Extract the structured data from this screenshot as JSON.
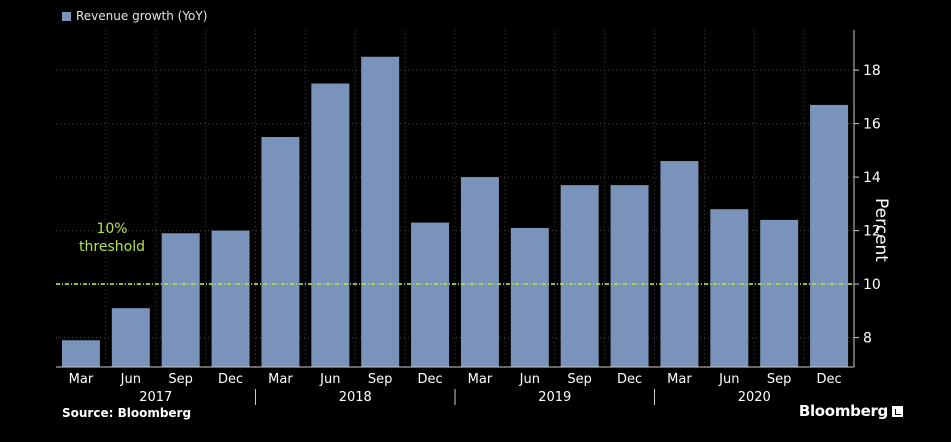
{
  "legend": {
    "label": "Revenue growth (YoY)",
    "color": "#7a93ba"
  },
  "threshold": {
    "label_line1": "10%",
    "label_line2": "threshold",
    "value": 10,
    "color": "#b3e34a"
  },
  "footer": {
    "source": "Source: Bloomberg",
    "brand": "Bloomberg"
  },
  "chart_data": {
    "type": "bar",
    "categories": [
      "Mar",
      "Jun",
      "Sep",
      "Dec",
      "Mar",
      "Jun",
      "Sep",
      "Dec",
      "Mar",
      "Jun",
      "Sep",
      "Dec",
      "Mar",
      "Jun",
      "Sep",
      "Dec"
    ],
    "years": [
      {
        "label": "2017",
        "start": 0,
        "end": 3
      },
      {
        "label": "2018",
        "start": 4,
        "end": 7
      },
      {
        "label": "2019",
        "start": 8,
        "end": 11
      },
      {
        "label": "2020",
        "start": 12,
        "end": 15
      }
    ],
    "series": [
      {
        "name": "Revenue growth (YoY)",
        "values": [
          7.9,
          9.1,
          11.9,
          12.0,
          15.5,
          17.5,
          18.5,
          12.3,
          14.0,
          12.1,
          13.7,
          13.7,
          14.6,
          12.8,
          12.4,
          16.7
        ]
      }
    ],
    "yticks": [
      8,
      10,
      12,
      14,
      16,
      18
    ],
    "ylim": [
      6.9,
      19.5
    ],
    "ylabel": "Percent",
    "grid": true,
    "legend_position": "top-left",
    "bar_color": "#7a93ba"
  }
}
